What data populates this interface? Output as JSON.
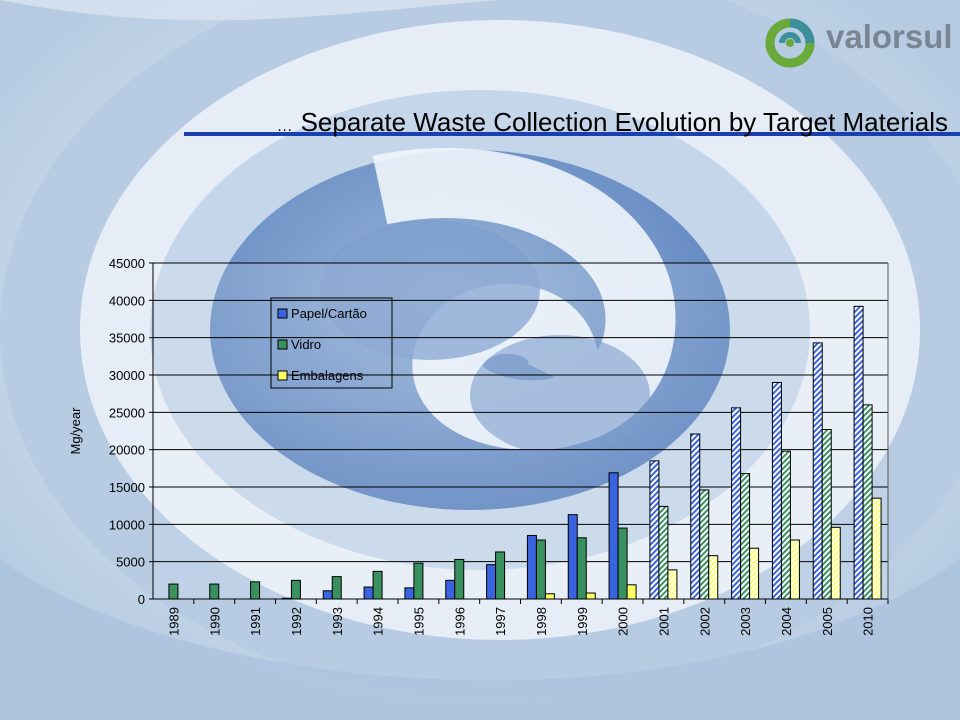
{
  "header": {
    "logo_text": "valorsul",
    "title_prefix": "…",
    "title": "Separate Waste Collection Evolution by Target Materials"
  },
  "colors": {
    "papel": "#3a63e0",
    "vidro": "#3a9160",
    "embalagens": "#ffff66",
    "title_rule": "#1a3fb0"
  },
  "chart_data": {
    "type": "bar",
    "title": "",
    "xlabel": "",
    "ylabel": "Mg/year",
    "ylim": [
      0,
      45000
    ],
    "yticks": [
      0,
      5000,
      10000,
      15000,
      20000,
      25000,
      30000,
      35000,
      40000,
      45000
    ],
    "grid": true,
    "legend_position": "top-left",
    "categories": [
      "1989",
      "1990",
      "1991",
      "1992",
      "1993",
      "1994",
      "1995",
      "1996",
      "1997",
      "1998",
      "1999",
      "2000",
      "2001",
      "2002",
      "2003",
      "2004",
      "2005",
      "2010"
    ],
    "projected_from": "2001",
    "series": [
      {
        "name": "Papel/Cartão",
        "color_key": "papel",
        "values": [
          0,
          0,
          0,
          100,
          1100,
          1600,
          1500,
          2500,
          4600,
          8500,
          11300,
          16900,
          18500,
          22100,
          25600,
          29000,
          34300,
          39200
        ]
      },
      {
        "name": "Vidro",
        "color_key": "vidro",
        "values": [
          2000,
          2000,
          2300,
          2500,
          3000,
          3700,
          4800,
          5300,
          6300,
          7900,
          8200,
          9500,
          12400,
          14600,
          16800,
          19800,
          22700,
          26000
        ]
      },
      {
        "name": "Embalagens",
        "color_key": "embalagens",
        "values": [
          0,
          0,
          0,
          0,
          0,
          0,
          0,
          0,
          0,
          700,
          800,
          1900,
          3900,
          5800,
          6800,
          7900,
          9600,
          13500
        ]
      }
    ]
  }
}
